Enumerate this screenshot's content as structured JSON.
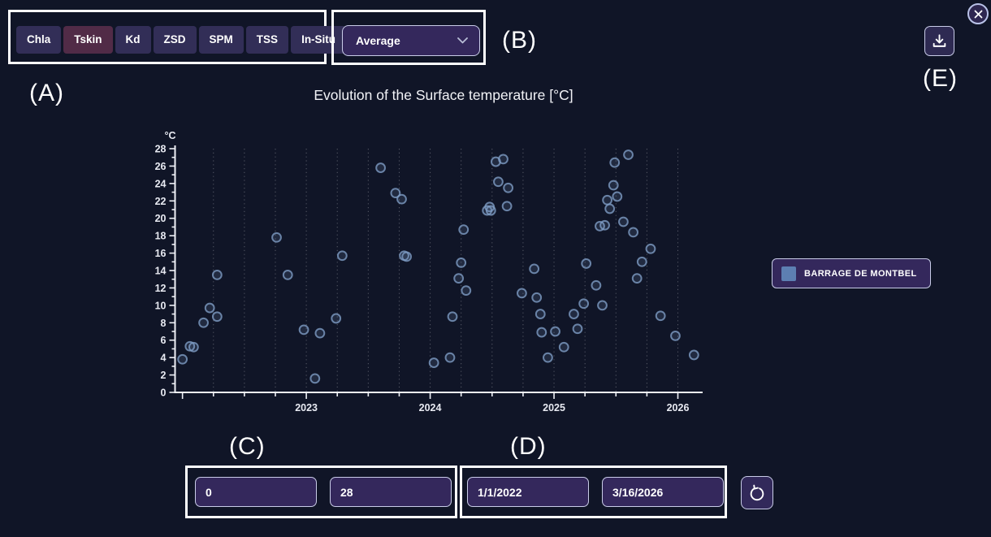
{
  "annotations": {
    "a": "(A)",
    "b": "(B)",
    "c": "(C)",
    "d": "(D)",
    "e": "(E)"
  },
  "tabs": {
    "items": [
      {
        "label": "Chla",
        "active": false
      },
      {
        "label": "Tskin",
        "active": true
      },
      {
        "label": "Kd",
        "active": false
      },
      {
        "label": "ZSD",
        "active": false
      },
      {
        "label": "SPM",
        "active": false
      },
      {
        "label": "TSS",
        "active": false
      },
      {
        "label": "In-Situ",
        "active": false
      }
    ]
  },
  "average_select": {
    "value": "Average"
  },
  "icons": {
    "close": "x-cross",
    "download": "download-tray-arrow",
    "chevron": "chevron-down",
    "reset": "rotate-counterclockwise"
  },
  "legend": {
    "label": "BARRAGE DE MONTBEL",
    "swatch_color": "#5d7fb2"
  },
  "value_range": {
    "min": "0",
    "max": "28"
  },
  "date_range": {
    "start": "1/1/2022",
    "end": "3/16/2026"
  },
  "colors": {
    "background": "#101527",
    "panel": "#34285c",
    "tab": "#322e57",
    "tab_active": "#512b47",
    "border_light": "#c9cce8",
    "point": "#7e9cc4",
    "axis": "#eef0f6"
  },
  "chart_data": {
    "type": "scatter",
    "title": "Evolution of the Surface temperature [°C]",
    "y_unit_label": "°C",
    "xlabel": "",
    "ylabel": "°C",
    "xlim": [
      2021.94,
      2026.2
    ],
    "ylim": [
      0,
      28
    ],
    "x_ticks_labeled": [
      2023,
      2024,
      2025,
      2026
    ],
    "x_tick_step": 0.25,
    "grid_x_start": 2022.25,
    "grid_x_end": 2026.0,
    "y_tick_step": 1,
    "y_label_step": 2,
    "grid": "vertical-dotted",
    "legend_position": "right",
    "series": [
      {
        "name": "BARRAGE DE MONTBEL",
        "points": [
          [
            2022.0,
            3.8
          ],
          [
            2022.06,
            5.3
          ],
          [
            2022.09,
            5.2
          ],
          [
            2022.17,
            8.0
          ],
          [
            2022.22,
            9.7
          ],
          [
            2022.28,
            13.5
          ],
          [
            2022.28,
            8.7
          ],
          [
            2022.76,
            17.8
          ],
          [
            2022.85,
            13.5
          ],
          [
            2022.98,
            7.2
          ],
          [
            2023.07,
            1.6
          ],
          [
            2023.11,
            6.8
          ],
          [
            2023.24,
            8.5
          ],
          [
            2023.29,
            15.7
          ],
          [
            2023.6,
            25.8
          ],
          [
            2023.72,
            22.9
          ],
          [
            2023.77,
            22.2
          ],
          [
            2023.79,
            15.7
          ],
          [
            2023.81,
            15.6
          ],
          [
            2024.03,
            3.4
          ],
          [
            2024.16,
            4.0
          ],
          [
            2024.18,
            8.7
          ],
          [
            2024.23,
            13.1
          ],
          [
            2024.25,
            14.9
          ],
          [
            2024.27,
            18.7
          ],
          [
            2024.29,
            11.7
          ],
          [
            2024.46,
            20.9
          ],
          [
            2024.48,
            21.3
          ],
          [
            2024.49,
            20.9
          ],
          [
            2024.53,
            26.5
          ],
          [
            2024.55,
            24.2
          ],
          [
            2024.59,
            26.8
          ],
          [
            2024.62,
            21.4
          ],
          [
            2024.63,
            23.5
          ],
          [
            2024.74,
            11.4
          ],
          [
            2024.84,
            14.2
          ],
          [
            2024.86,
            10.9
          ],
          [
            2024.89,
            9.0
          ],
          [
            2024.9,
            6.9
          ],
          [
            2024.95,
            4.0
          ],
          [
            2025.01,
            7.0
          ],
          [
            2025.08,
            5.2
          ],
          [
            2025.16,
            9.0
          ],
          [
            2025.19,
            7.3
          ],
          [
            2025.24,
            10.2
          ],
          [
            2025.26,
            14.8
          ],
          [
            2025.34,
            12.3
          ],
          [
            2025.37,
            19.1
          ],
          [
            2025.39,
            10.0
          ],
          [
            2025.41,
            19.2
          ],
          [
            2025.43,
            22.1
          ],
          [
            2025.45,
            21.1
          ],
          [
            2025.48,
            23.8
          ],
          [
            2025.49,
            26.4
          ],
          [
            2025.51,
            22.5
          ],
          [
            2025.56,
            19.6
          ],
          [
            2025.6,
            27.3
          ],
          [
            2025.64,
            18.4
          ],
          [
            2025.67,
            13.1
          ],
          [
            2025.71,
            15.0
          ],
          [
            2025.78,
            16.5
          ],
          [
            2025.86,
            8.8
          ],
          [
            2025.98,
            6.5
          ],
          [
            2026.13,
            4.3
          ]
        ]
      }
    ]
  }
}
